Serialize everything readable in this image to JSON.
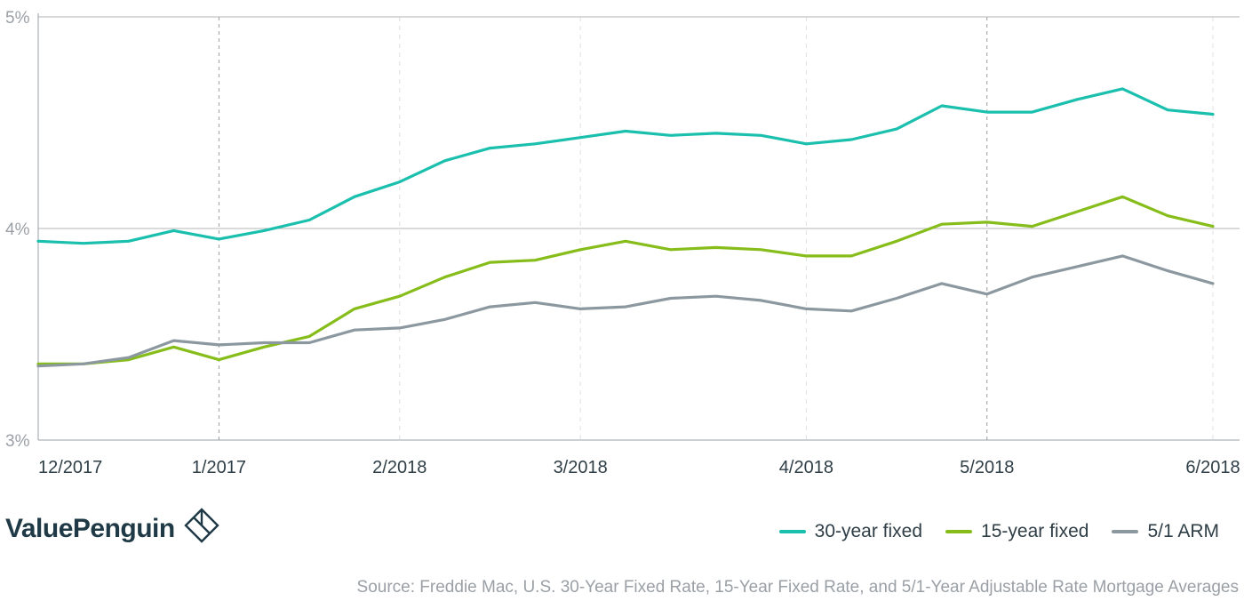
{
  "brand": {
    "name": "ValuePenguin",
    "logo_icon": "diamond-penguin-logo-icon"
  },
  "source": "Source: Freddie Mac, U.S. 30-Year Fixed Rate, 15-Year Fixed Rate, and 5/1-Year Adjustable Rate Mortgage Averages",
  "legend": [
    {
      "label": "30-year fixed",
      "color": "#1abfae"
    },
    {
      "label": "15-year fixed",
      "color": "#86bd1a"
    },
    {
      "label": "5/1 ARM",
      "color": "#8c989f"
    }
  ],
  "chart_data": {
    "type": "line",
    "title": "",
    "xlabel": "",
    "ylabel": "",
    "ylim": [
      3,
      5
    ],
    "y_ticks": [
      "3%",
      "4%",
      "5%"
    ],
    "x_tick_labels": [
      {
        "label": "12/2017",
        "index": 0,
        "divider": false
      },
      {
        "label": "1/2017",
        "index": 4,
        "divider": true
      },
      {
        "label": "2/2018",
        "index": 8,
        "divider": false
      },
      {
        "label": "3/2018",
        "index": 12,
        "divider": false
      },
      {
        "label": "4/2018",
        "index": 17,
        "divider": false
      },
      {
        "label": "5/2018",
        "index": 21,
        "divider": true
      },
      {
        "label": "6/2018",
        "index": 26,
        "divider": false
      }
    ],
    "x": [
      0,
      1,
      2,
      3,
      4,
      5,
      6,
      7,
      8,
      9,
      10,
      11,
      12,
      13,
      14,
      15,
      16,
      17,
      18,
      19,
      20,
      21,
      22,
      23,
      24,
      25,
      26
    ],
    "series": [
      {
        "name": "30-year fixed",
        "color": "#1abfae",
        "values": [
          3.94,
          3.93,
          3.94,
          3.99,
          3.95,
          3.99,
          4.04,
          4.15,
          4.22,
          4.32,
          4.38,
          4.4,
          4.43,
          4.46,
          4.44,
          4.45,
          4.44,
          4.4,
          4.42,
          4.47,
          4.58,
          4.55,
          4.55,
          4.61,
          4.66,
          4.56,
          4.54
        ]
      },
      {
        "name": "15-year fixed",
        "color": "#86bd1a",
        "values": [
          3.36,
          3.36,
          3.38,
          3.44,
          3.38,
          3.44,
          3.49,
          3.62,
          3.68,
          3.77,
          3.84,
          3.85,
          3.9,
          3.94,
          3.9,
          3.91,
          3.9,
          3.87,
          3.87,
          3.94,
          4.02,
          4.03,
          4.01,
          4.08,
          4.15,
          4.06,
          4.01
        ]
      },
      {
        "name": "5/1 ARM",
        "color": "#8c989f",
        "values": [
          3.35,
          3.36,
          3.39,
          3.47,
          3.45,
          3.46,
          3.46,
          3.52,
          3.53,
          3.57,
          3.63,
          3.65,
          3.62,
          3.63,
          3.67,
          3.68,
          3.66,
          3.62,
          3.61,
          3.67,
          3.74,
          3.69,
          3.77,
          3.82,
          3.87,
          3.8,
          3.74
        ]
      }
    ],
    "grid": true,
    "legend_position": "bottom-right"
  }
}
